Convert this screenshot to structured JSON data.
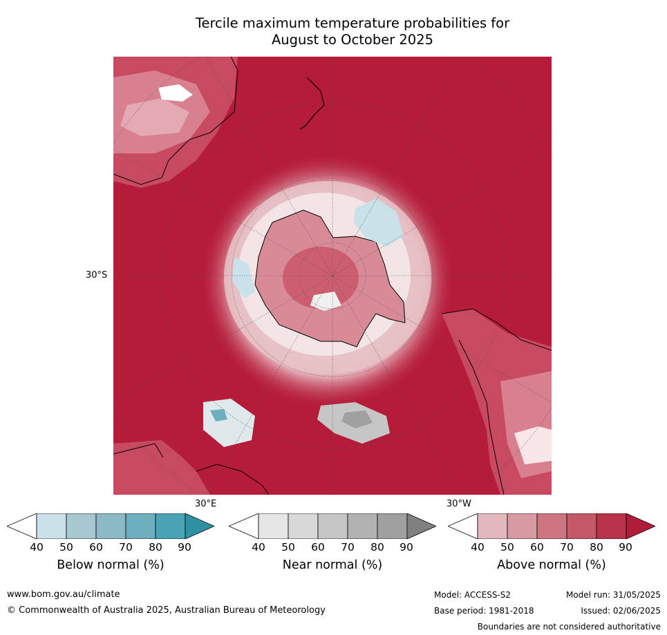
{
  "title_line1": "Tercile maximum temperature probabilities for",
  "title_line2": "August to October 2025",
  "map": {
    "latitude_label": "30°S",
    "longitude_labels": [
      "30°E",
      "30°W"
    ],
    "colors": {
      "ocean_dominant": "#b51c3a",
      "above_70": "#c84a60",
      "above_60": "#d9808f",
      "above_50": "#e3aab3",
      "near_50": "#e6e6e6",
      "below_50": "#c9e1e8"
    }
  },
  "colorbars": [
    {
      "name": "below",
      "label": "Below normal (%)",
      "ticks": [
        "40",
        "50",
        "60",
        "70",
        "80",
        "90"
      ],
      "colors": [
        "#ffffff",
        "#c9e1e8",
        "#a6c9d1",
        "#8cbac4",
        "#6eafbf",
        "#4aa3b5",
        "#2e8fa5"
      ]
    },
    {
      "name": "near",
      "label": "Near normal (%)",
      "ticks": [
        "40",
        "50",
        "60",
        "70",
        "80",
        "90"
      ],
      "colors": [
        "#ffffff",
        "#e6e6e6",
        "#d8d8d8",
        "#c6c6c6",
        "#b2b2b2",
        "#a0a0a0",
        "#808080"
      ]
    },
    {
      "name": "above",
      "label": "Above normal (%)",
      "ticks": [
        "40",
        "50",
        "60",
        "70",
        "80",
        "90"
      ],
      "colors": [
        "#ffffff",
        "#e3b8bd",
        "#d99ba3",
        "#cd7580",
        "#c35867",
        "#b9334a",
        "#b01c3a"
      ]
    }
  ],
  "footer": {
    "website": "www.bom.gov.au/climate",
    "copyright": "© Commonwealth of Australia 2025, Australian Bureau of Meteorology",
    "model": "Model: ACCESS-S2",
    "model_run": "Model run: 31/05/2025",
    "base_period": "Base period: 1981-2018",
    "issued": "Issued: 02/06/2025",
    "disclaimer": "Boundaries are not considered authoritative"
  }
}
